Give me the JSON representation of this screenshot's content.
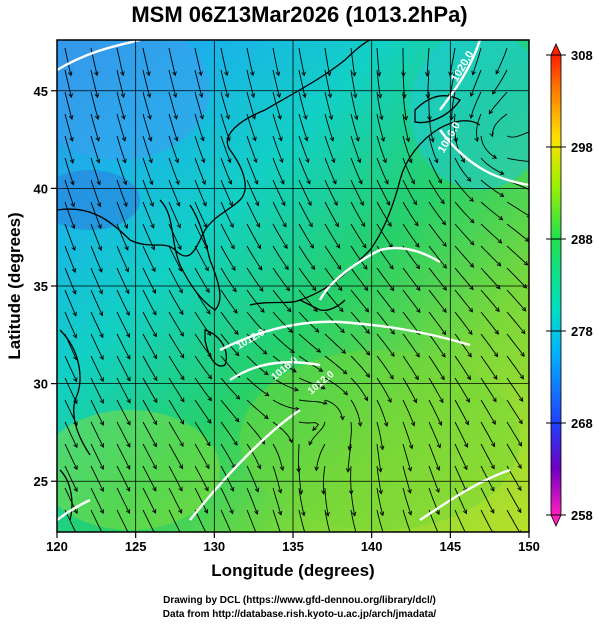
{
  "title": "MSM 06Z13Mar2026 (1013.2hPa)",
  "x_axis": {
    "label": "Longitude (degrees)",
    "ticks": [
      120,
      125,
      130,
      135,
      140,
      145,
      150
    ],
    "range": [
      120,
      150
    ]
  },
  "y_axis": {
    "label": "Latitude  (degrees)",
    "ticks": [
      25,
      30,
      35,
      40,
      45
    ],
    "range": [
      22.4,
      47.6
    ]
  },
  "colorbar": {
    "ticks": [
      308,
      298,
      288,
      278,
      268,
      258
    ],
    "range": [
      258,
      308
    ],
    "colors": [
      "#ff20c0",
      "#6000c0",
      "#2040ff",
      "#00c8ff",
      "#20e060",
      "#a0f000",
      "#ffe000",
      "#ff8000",
      "#ff2000"
    ]
  },
  "isobar_labels": [
    "1020.0",
    "1016.0",
    "1012.0",
    "1016.0",
    "1012.0"
  ],
  "credits": {
    "line1": "Drawing by DCL (https://www.gfd-dennou.org/library/dcl/)",
    "line2": "Data from http://database.rish.kyoto-u.ac.jp/arch/jmadata/"
  },
  "colors": {
    "land_sea_low": "#4a8ee8",
    "frame": "#000000",
    "isobar": "#ffffff",
    "coast": "#000000"
  }
}
